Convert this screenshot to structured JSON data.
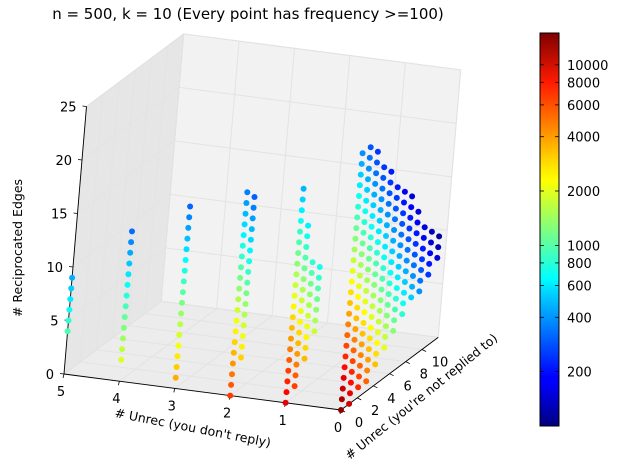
{
  "chart_data": {
    "type": "scatter",
    "title": "n = 500, k = 10 (Every point has frequency >=100)",
    "projection": "3d",
    "grid": true,
    "axes": {
      "x": {
        "label": "# Unrec (you don't reply)",
        "ticks": [
          "0",
          "1",
          "2",
          "3",
          "4",
          "5"
        ],
        "range": [
          0,
          5
        ]
      },
      "y": {
        "label": "# Unrec (you're not replied to)",
        "ticks": [
          "0",
          "2",
          "4",
          "6",
          "8",
          "10"
        ],
        "range": [
          0,
          12
        ]
      },
      "z": {
        "label": "# Reciprocated Edges",
        "ticks": [
          "0",
          "5",
          "10",
          "15",
          "20",
          "25"
        ],
        "range": [
          0,
          25
        ]
      }
    },
    "colorbar": {
      "colormap": "jet",
      "scale": "log",
      "range": [
        100,
        15000
      ],
      "ticks": [
        "200",
        "400",
        "600",
        "800",
        "1000",
        "2000",
        "4000",
        "6000",
        "8000",
        "10000"
      ],
      "placement": "right"
    },
    "point_columns": [
      {
        "x": 5,
        "y": 0,
        "z_min": 4,
        "z_max": 9
      },
      {
        "x": 4,
        "y": 0,
        "z_min": 2,
        "z_max": 14
      },
      {
        "x": 3,
        "y": 0,
        "z_min": 1,
        "z_max": 17
      },
      {
        "x": 2,
        "y": 0,
        "z_min": 0,
        "z_max": 19
      },
      {
        "x": 2,
        "y": 1,
        "z_min": 3,
        "z_max": 18
      },
      {
        "x": 1,
        "y": 0,
        "z_min": 0,
        "z_max": 20
      },
      {
        "x": 1,
        "y": 1,
        "z_min": 1,
        "z_max": 16
      },
      {
        "x": 1,
        "y": 2,
        "z_min": 3,
        "z_max": 12
      },
      {
        "x": 1,
        "y": 3,
        "z_min": 5,
        "z_max": 11
      },
      {
        "x": 0,
        "y": 0,
        "z_min": 0,
        "z_max": 24
      },
      {
        "x": 0,
        "y": 1,
        "z_min": 0,
        "z_max": 24
      },
      {
        "x": 0,
        "y": 2,
        "z_min": 1,
        "z_max": 23
      },
      {
        "x": 0,
        "y": 3,
        "z_min": 1,
        "z_max": 21
      },
      {
        "x": 0,
        "y": 4,
        "z_min": 2,
        "z_max": 20
      },
      {
        "x": 0,
        "y": 5,
        "z_min": 3,
        "z_max": 18
      },
      {
        "x": 0,
        "y": 6,
        "z_min": 4,
        "z_max": 17
      },
      {
        "x": 0,
        "y": 7,
        "z_min": 5,
        "z_max": 16
      },
      {
        "x": 0,
        "y": 8,
        "z_min": 6,
        "z_max": 14
      },
      {
        "x": 0,
        "y": 9,
        "z_min": 6,
        "z_max": 12
      },
      {
        "x": 0,
        "y": 10,
        "z_min": 7,
        "z_max": 11
      },
      {
        "x": 0,
        "y": 11,
        "z_min": 8,
        "z_max": 10
      }
    ]
  }
}
